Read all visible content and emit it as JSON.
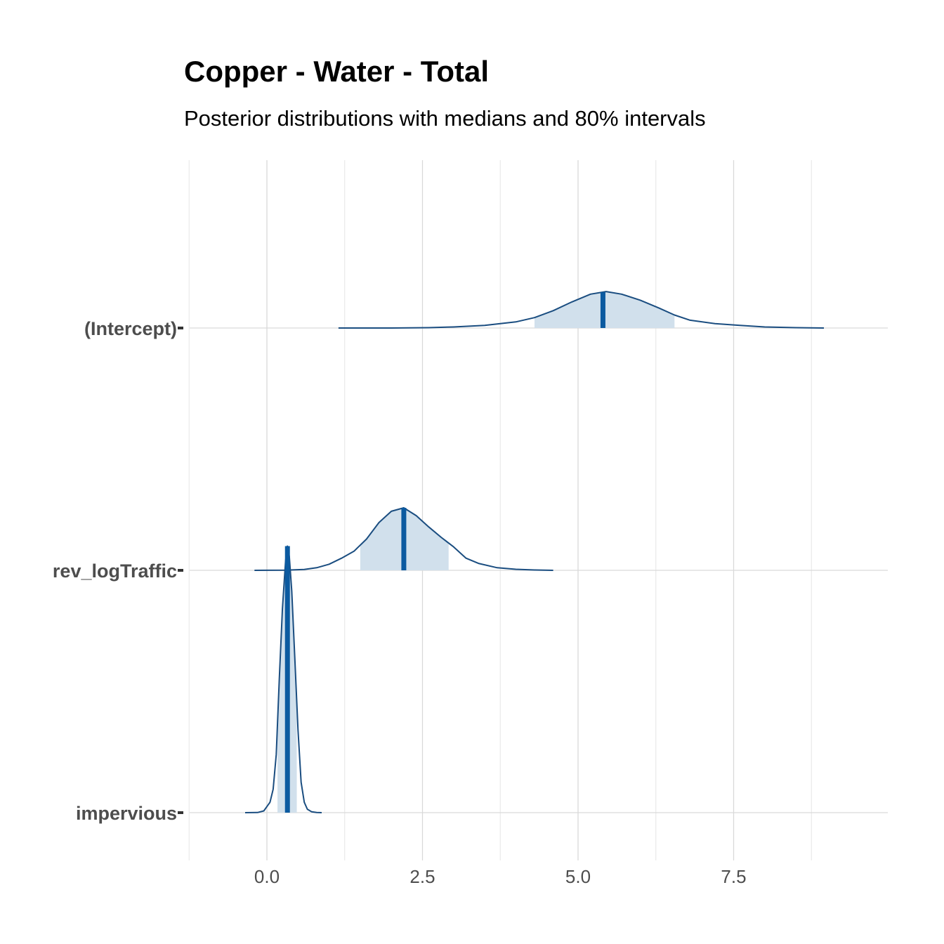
{
  "chart_data": {
    "type": "ridgeline",
    "title": "Copper - Water - Total",
    "subtitle": "Posterior distributions with medians and 80% intervals",
    "xlabel": "",
    "ylabel": "",
    "xlim": [
      -1.0,
      9.8
    ],
    "x_ticks": [
      0.0,
      2.5,
      5.0,
      7.5
    ],
    "x_tick_labels": [
      "0.0",
      "2.5",
      "5.0",
      "7.5"
    ],
    "grid": true,
    "colors": {
      "line": "#1a4d80",
      "fill": "#d1e0ec",
      "median": "#0b5aa0",
      "grid": "#d9d9d9"
    },
    "series": [
      {
        "name": "(Intercept)",
        "median": 5.4,
        "interval80": [
          4.3,
          6.55
        ],
        "support": [
          1.15,
          8.95
        ],
        "density": [
          [
            1.15,
            0.0
          ],
          [
            2.0,
            0.0
          ],
          [
            2.6,
            0.004
          ],
          [
            3.0,
            0.012
          ],
          [
            3.5,
            0.03
          ],
          [
            4.0,
            0.07
          ],
          [
            4.3,
            0.12
          ],
          [
            4.6,
            0.2
          ],
          [
            4.9,
            0.3
          ],
          [
            5.2,
            0.39
          ],
          [
            5.45,
            0.42
          ],
          [
            5.7,
            0.39
          ],
          [
            6.0,
            0.32
          ],
          [
            6.3,
            0.23
          ],
          [
            6.55,
            0.15
          ],
          [
            6.8,
            0.09
          ],
          [
            7.2,
            0.05
          ],
          [
            7.6,
            0.03
          ],
          [
            8.0,
            0.012
          ],
          [
            8.5,
            0.004
          ],
          [
            8.95,
            0.0
          ]
        ]
      },
      {
        "name": "rev_logTraffic",
        "median": 2.2,
        "interval80": [
          1.5,
          2.92
        ],
        "support": [
          -0.2,
          4.6
        ],
        "density": [
          [
            -0.2,
            0.0
          ],
          [
            0.3,
            0.002
          ],
          [
            0.6,
            0.01
          ],
          [
            0.8,
            0.03
          ],
          [
            1.0,
            0.07
          ],
          [
            1.2,
            0.14
          ],
          [
            1.4,
            0.22
          ],
          [
            1.6,
            0.36
          ],
          [
            1.8,
            0.55
          ],
          [
            2.0,
            0.68
          ],
          [
            2.2,
            0.72
          ],
          [
            2.4,
            0.63
          ],
          [
            2.6,
            0.5
          ],
          [
            2.8,
            0.38
          ],
          [
            3.0,
            0.27
          ],
          [
            3.2,
            0.14
          ],
          [
            3.4,
            0.08
          ],
          [
            3.7,
            0.03
          ],
          [
            4.0,
            0.012
          ],
          [
            4.3,
            0.004
          ],
          [
            4.6,
            0.0
          ]
        ]
      },
      {
        "name": "impervious",
        "median": 0.33,
        "interval80": [
          0.17,
          0.48
        ],
        "support": [
          -0.35,
          0.88
        ],
        "density": [
          [
            -0.35,
            0.0
          ],
          [
            -0.15,
            0.002
          ],
          [
            -0.05,
            0.02
          ],
          [
            0.05,
            0.12
          ],
          [
            0.1,
            0.27
          ],
          [
            0.15,
            0.67
          ],
          [
            0.2,
            1.55
          ],
          [
            0.25,
            2.35
          ],
          [
            0.3,
            2.9
          ],
          [
            0.33,
            3.07
          ],
          [
            0.36,
            2.95
          ],
          [
            0.4,
            2.55
          ],
          [
            0.45,
            1.75
          ],
          [
            0.5,
            0.95
          ],
          [
            0.55,
            0.35
          ],
          [
            0.6,
            0.12
          ],
          [
            0.65,
            0.04
          ],
          [
            0.72,
            0.01
          ],
          [
            0.8,
            0.002
          ],
          [
            0.88,
            0.0
          ]
        ]
      }
    ]
  }
}
